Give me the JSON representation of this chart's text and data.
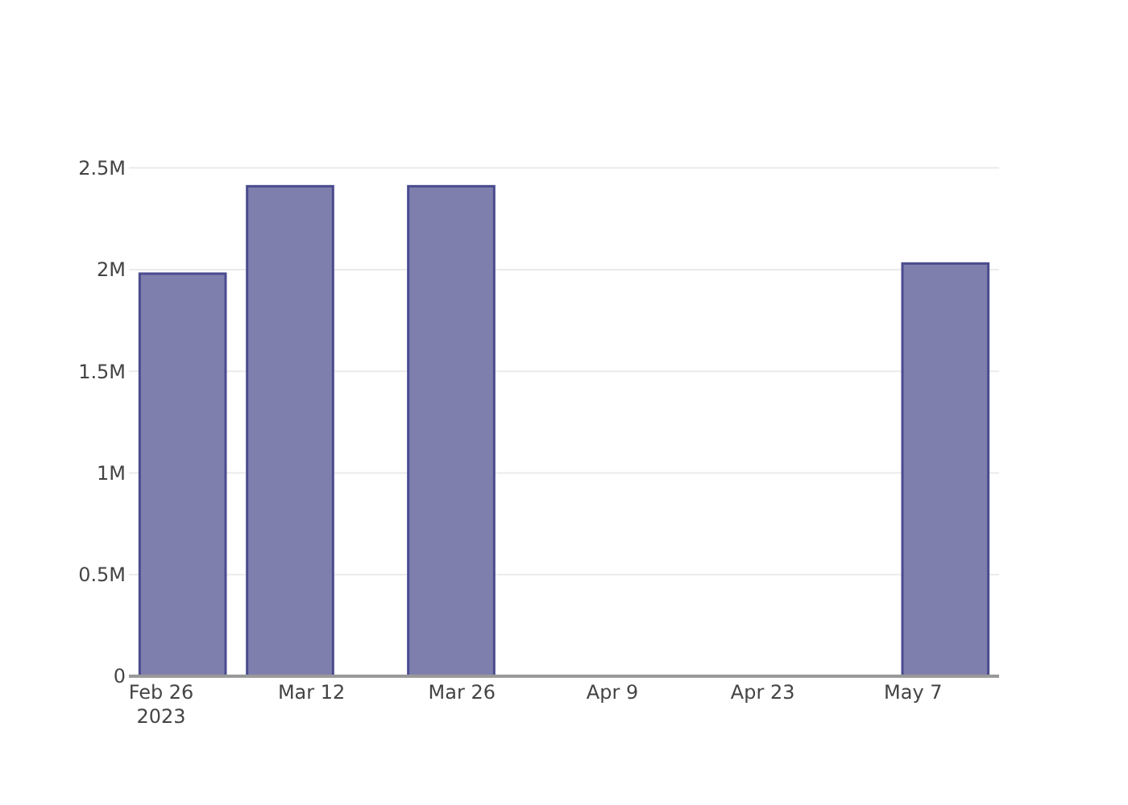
{
  "chart_data": {
    "type": "bar",
    "x": [
      "2023-02-28",
      "2023-03-10",
      "2023-03-25",
      "2023-05-10"
    ],
    "values": [
      1980000,
      2410000,
      2410000,
      2030000
    ],
    "color": "#7f7fae",
    "xlim": [
      "2023-02-23",
      "2023-05-15"
    ],
    "xticks": [
      {
        "value": "2023-02-26",
        "label": "Feb 26\n2023"
      },
      {
        "value": "2023-03-12",
        "label": "Mar 12"
      },
      {
        "value": "2023-03-26",
        "label": "Mar 26"
      },
      {
        "value": "2023-04-09",
        "label": "Apr 9"
      },
      {
        "value": "2023-04-23",
        "label": "Apr 23"
      },
      {
        "value": "2023-05-07",
        "label": "May 7"
      }
    ],
    "ylim": [
      0,
      2500000
    ],
    "yticks": [
      0,
      {
        "value": 500000,
        "label": "0.5M"
      },
      {
        "value": 1000000,
        "label": "1M"
      },
      {
        "value": 1500000,
        "label": "1.5M"
      },
      {
        "value": 2000000,
        "label": "2M"
      },
      {
        "value": 2500000,
        "label": "2.5M"
      }
    ],
    "grid": "y"
  }
}
